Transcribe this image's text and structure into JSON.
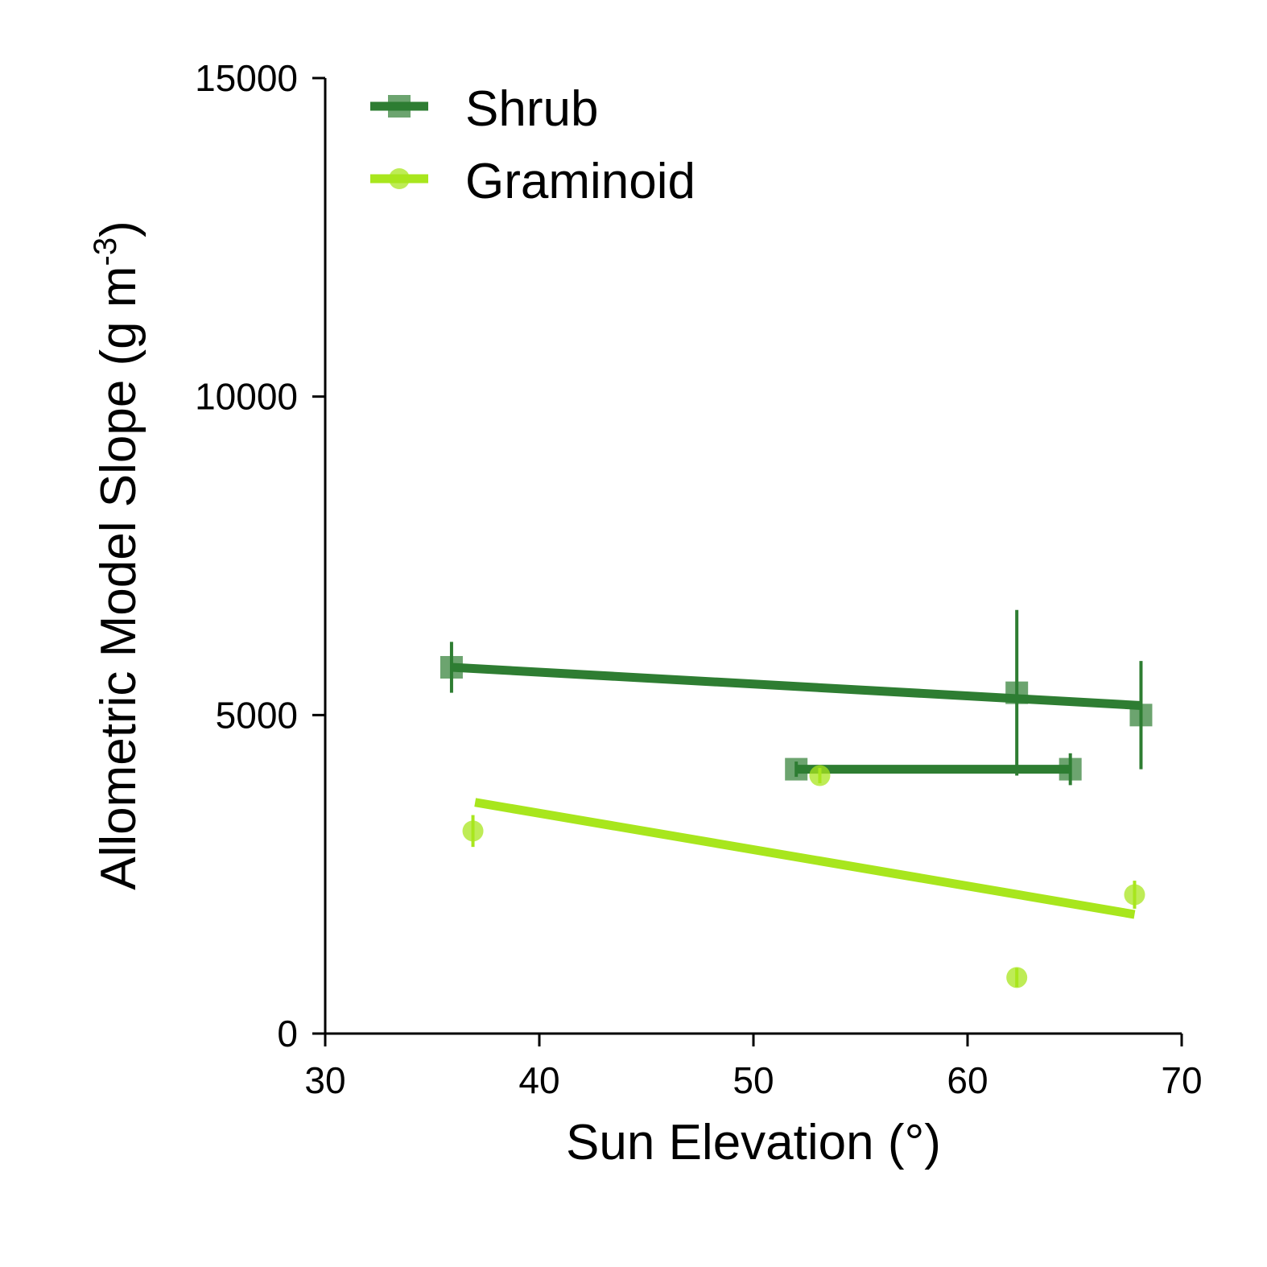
{
  "chart_data": {
    "type": "scatter",
    "title": "",
    "xlabel": "Sun Elevation (°)",
    "ylabel_main": "Allometric Model Slope (g m",
    "ylabel_sup": "-3",
    "ylabel_close": ")",
    "xlim": [
      30,
      70
    ],
    "ylim": [
      0,
      15000
    ],
    "x_ticks": [
      30,
      40,
      50,
      60,
      70
    ],
    "x_tick_labels": [
      "30",
      "40",
      "50",
      "60",
      "70"
    ],
    "y_ticks": [
      0,
      5000,
      10000,
      15000
    ],
    "y_tick_labels": [
      "0",
      "5000",
      "10000",
      "15000"
    ],
    "grid": false,
    "legend_position": "top-left",
    "series": [
      {
        "name": "Shrub",
        "color": "#2e7d32",
        "marker": "square",
        "points": [
          {
            "x": 35.9,
            "y": 5750,
            "yerr": 400,
            "xerr": 0
          },
          {
            "x": 52.0,
            "y": 4150,
            "yerr": 120,
            "xerr": 0
          },
          {
            "x": 62.3,
            "y": 5350,
            "yerr": 1300,
            "xerr": 0
          },
          {
            "x": 64.8,
            "y": 4150,
            "yerr": 250,
            "xerr": 0
          },
          {
            "x": 68.1,
            "y": 5000,
            "yerr": 850,
            "xerr": 0
          }
        ],
        "segments": [
          {
            "x1": 52.0,
            "y1": 4150,
            "x2": 64.8,
            "y2": 4150
          }
        ],
        "fit": {
          "x1": 35.9,
          "y1": 5750,
          "x2": 68.1,
          "y2": 5150
        }
      },
      {
        "name": "Graminoid",
        "color": "#a8e61d",
        "marker": "circle",
        "points": [
          {
            "x": 36.9,
            "y": 3180,
            "yerr": 250
          },
          {
            "x": 53.1,
            "y": 4050,
            "yerr": 120
          },
          {
            "x": 62.3,
            "y": 880,
            "yerr": 150
          },
          {
            "x": 67.8,
            "y": 2180,
            "yerr": 220
          }
        ],
        "fit": {
          "x1": 37.0,
          "y1": 3630,
          "x2": 67.8,
          "y2": 1870
        }
      }
    ]
  }
}
